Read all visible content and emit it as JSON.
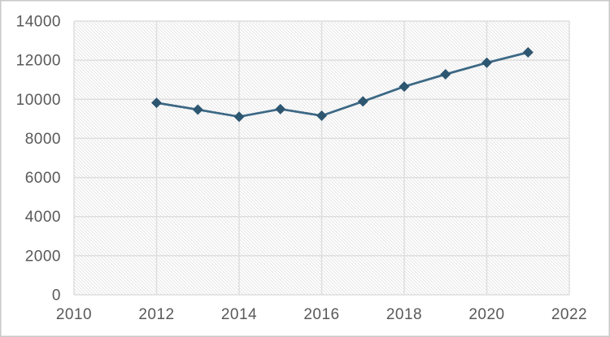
{
  "chart_data": {
    "type": "line",
    "x": [
      2012,
      2013,
      2014,
      2015,
      2016,
      2017,
      2018,
      2019,
      2020,
      2021
    ],
    "values": [
      9820,
      9470,
      9110,
      9500,
      9160,
      9890,
      10650,
      11280,
      11870,
      12400
    ],
    "xlim": [
      2010,
      2022
    ],
    "ylim": [
      0,
      14000
    ],
    "x_ticks": [
      2010,
      2012,
      2014,
      2016,
      2018,
      2020,
      2022
    ],
    "y_ticks": [
      0,
      2000,
      4000,
      6000,
      8000,
      10000,
      12000,
      14000
    ],
    "x_tick_labels": [
      "2010",
      "2012",
      "2014",
      "2016",
      "2018",
      "2020",
      "2022"
    ],
    "y_tick_labels": [
      "0",
      "2000",
      "4000",
      "6000",
      "8000",
      "10000",
      "12000",
      "14000"
    ],
    "grid": true,
    "legend": false,
    "marker": "diamond",
    "plot_area_fill": "diagonal-hatch"
  },
  "colors": {
    "line": "#3c6885",
    "marker": "#2d5671",
    "grid": "#dedede",
    "hatch": "#e7e7e7",
    "tick_label": "#595959",
    "frame_border": "#c9c9c9",
    "background": "#ffffff"
  }
}
